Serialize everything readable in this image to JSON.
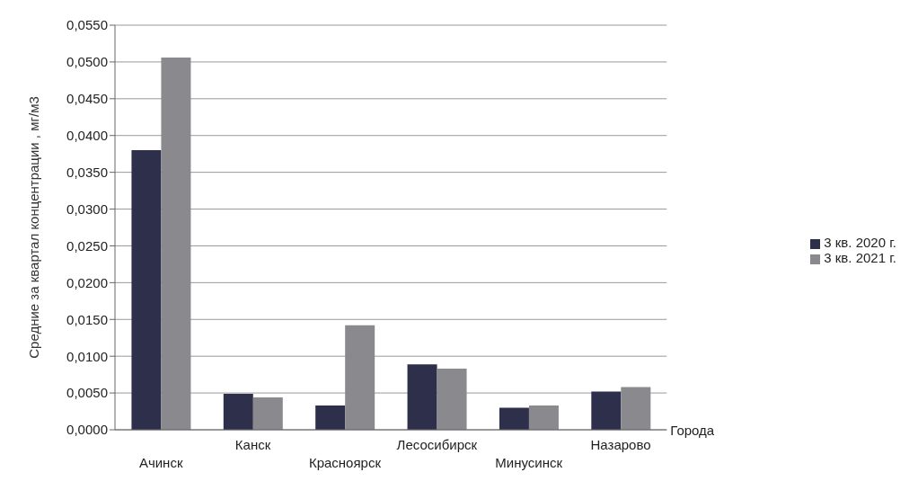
{
  "chart_data": {
    "type": "bar",
    "ylabel": "Средние за квартал концентрации , мг/м3",
    "xlabel": "Города",
    "categories": [
      "Ачинск",
      "Канск",
      "Красноярск",
      "Лесосибирск",
      "Минусинск",
      "Назарово"
    ],
    "series": [
      {
        "name": "3 кв. 2020 г.",
        "color": "#2e2f4a",
        "values": [
          0.038,
          0.0049,
          0.0033,
          0.0089,
          0.003,
          0.0052
        ]
      },
      {
        "name": "3 кв. 2021 г.",
        "color": "#8a8a8e",
        "values": [
          0.0506,
          0.0044,
          0.0142,
          0.0083,
          0.0033,
          0.0058
        ]
      }
    ],
    "ylim": [
      0,
      0.055
    ],
    "yticks": [
      {
        "value": 0,
        "label": "0,0000"
      },
      {
        "value": 0.005,
        "label": "0,0050"
      },
      {
        "value": 0.01,
        "label": "0,0100"
      },
      {
        "value": 0.015,
        "label": "0,0150"
      },
      {
        "value": 0.02,
        "label": "0,0200"
      },
      {
        "value": 0.025,
        "label": "0,0250"
      },
      {
        "value": 0.03,
        "label": "0,0300"
      },
      {
        "value": 0.035,
        "label": "0,0350"
      },
      {
        "value": 0.04,
        "label": "0,0400"
      },
      {
        "value": 0.045,
        "label": "0,0450"
      },
      {
        "value": 0.05,
        "label": "0,0500"
      },
      {
        "value": 0.055,
        "label": "0,0550"
      }
    ],
    "grid": "y",
    "legend": "right"
  }
}
